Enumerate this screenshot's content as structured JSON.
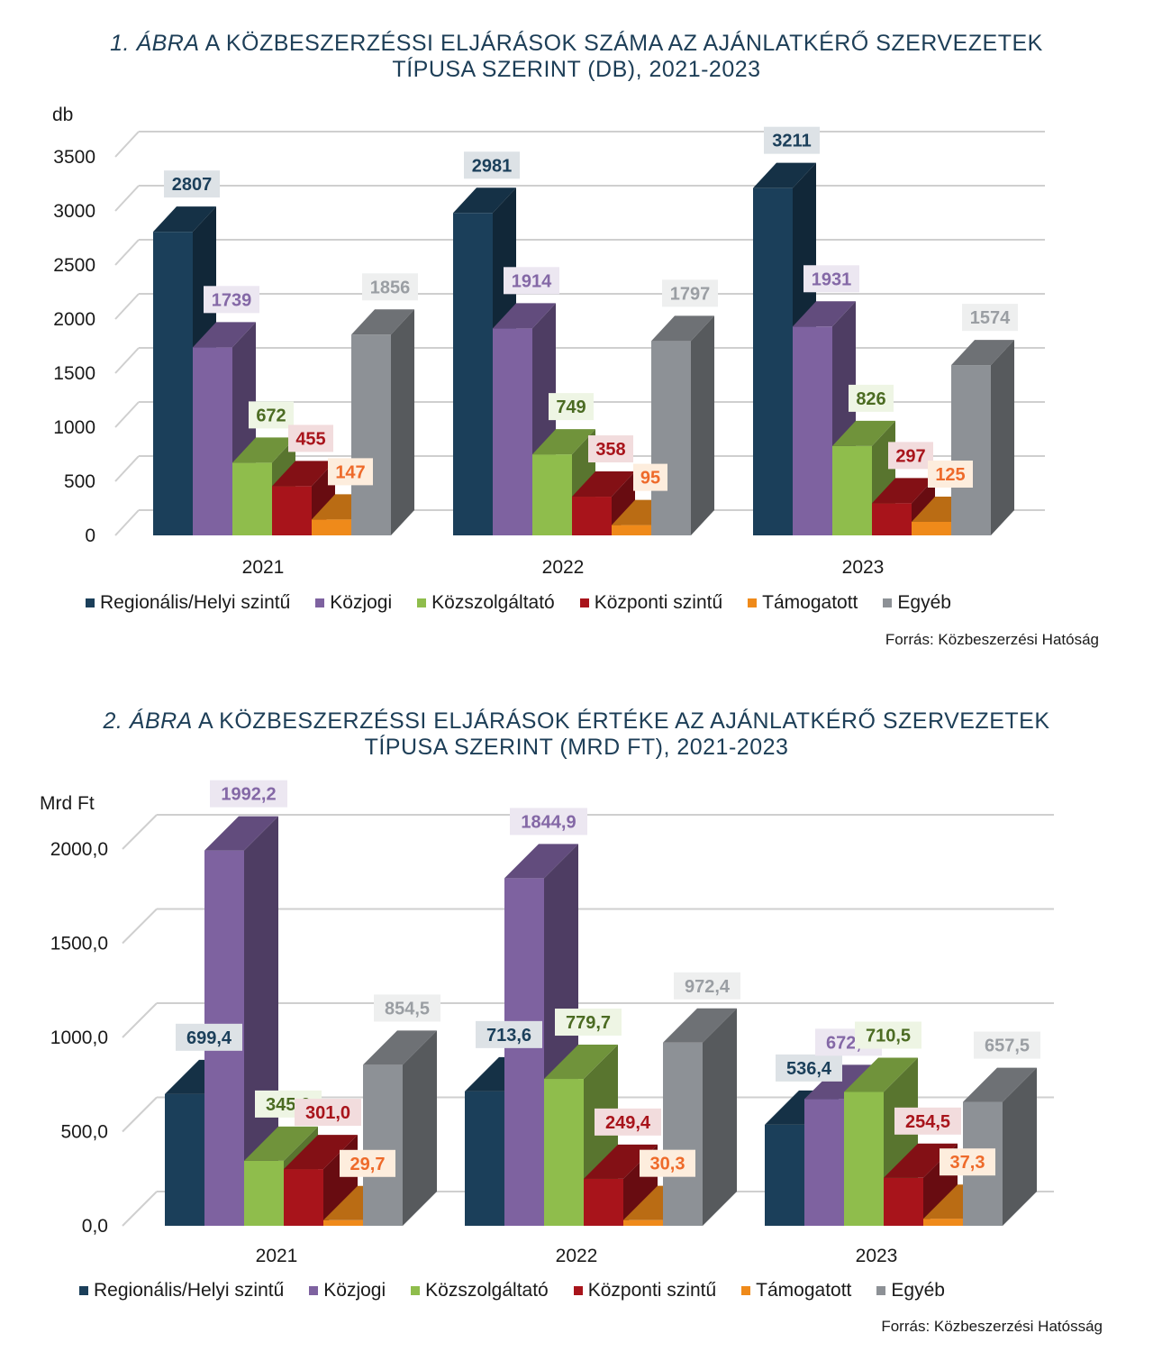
{
  "figures": [
    {
      "id": "chart1",
      "title_number": "1. ÁBRA",
      "title_line1": "A KÖZBESZERZÉSSI ELJÁRÁSOK SZÁMA AZ AJÁNLATKÉRŐ SZERVEZETEK",
      "title_line2": "TÍPUSA SZERINT (DB), 2021-2023",
      "source": "Forrás: Közbeszerzési Hatóság"
    },
    {
      "id": "chart2",
      "title_number": "2. ÁBRA",
      "title_line1": "A KÖZBESZERZÉSSI ELJÁRÁSOK ÉRTÉKE AZ AJÁNLATKÉRŐ SZERVEZETEK",
      "title_line2": "TÍPUSA SZERINT (MRD FT), 2021-2023",
      "source": "Forrás: Közbeszerzési Hatósság"
    }
  ],
  "colors": {
    "Regionális/Helyi szintű": "#1b3f5a",
    "Közjogi": "#7e62a0",
    "Közszolgáltató": "#8fbd4c",
    "Központi szintű": "#a8141b",
    "Támogatott": "#ef8a1a",
    "Egyéb": "#8d9196"
  },
  "chart_data": [
    {
      "type": "bar",
      "unit_label": "db",
      "categories": [
        "2021",
        "2022",
        "2023"
      ],
      "ylim": [
        0,
        3500
      ],
      "yticks": [
        "0",
        "500",
        "1000",
        "1500",
        "2000",
        "2500",
        "3000",
        "3500"
      ],
      "ytick_values": [
        0,
        500,
        1000,
        1500,
        2000,
        2500,
        3000,
        3500
      ],
      "grid": true,
      "legend_position": "bottom",
      "series": [
        {
          "name": "Regionális/Helyi szintű",
          "values": [
            2807,
            2981,
            3211
          ],
          "labels": [
            "2807",
            "2981",
            "3211"
          ]
        },
        {
          "name": "Közjogi",
          "values": [
            1739,
            1914,
            1931
          ],
          "labels": [
            "1739",
            "1914",
            "1931"
          ]
        },
        {
          "name": "Közszolgáltató",
          "values": [
            672,
            749,
            826
          ],
          "labels": [
            "672",
            "749",
            "826"
          ]
        },
        {
          "name": "Központi szintű",
          "values": [
            455,
            358,
            297
          ],
          "labels": [
            "455",
            "358",
            "297"
          ]
        },
        {
          "name": "Támogatott",
          "values": [
            147,
            95,
            125
          ],
          "labels": [
            "147",
            "95",
            "125"
          ]
        },
        {
          "name": "Egyéb",
          "values": [
            1856,
            1797,
            1574
          ],
          "labels": [
            "1856",
            "1797",
            "1574"
          ]
        }
      ]
    },
    {
      "type": "bar",
      "unit_label": "Mrd Ft",
      "categories": [
        "2021",
        "2022",
        "2023"
      ],
      "ylim": [
        0,
        2000
      ],
      "yticks": [
        "0,0",
        "500,0",
        "1000,0",
        "1500,0",
        "2000,0"
      ],
      "ytick_values": [
        0,
        500,
        1000,
        1500,
        2000
      ],
      "grid": true,
      "legend_position": "bottom",
      "series": [
        {
          "name": "Regionális/Helyi szintű",
          "values": [
            699.4,
            713.6,
            536.4
          ],
          "labels": [
            "699,4",
            "713,6",
            "536,4"
          ]
        },
        {
          "name": "Közjogi",
          "values": [
            1992.2,
            1844.9,
            672.9
          ],
          "labels": [
            "1992,2",
            "1844,9",
            "672,9"
          ]
        },
        {
          "name": "Közszolgáltató",
          "values": [
            345.0,
            779.7,
            710.5
          ],
          "labels": [
            "345,0",
            "779,7",
            "710,5"
          ]
        },
        {
          "name": "Központi szintű",
          "values": [
            301.0,
            249.4,
            254.5
          ],
          "labels": [
            "301,0",
            "249,4",
            "254,5"
          ]
        },
        {
          "name": "Támogatott",
          "values": [
            29.7,
            30.3,
            37.3
          ],
          "labels": [
            "29,7",
            "30,3",
            "37,3"
          ]
        },
        {
          "name": "Egyéb",
          "values": [
            854.5,
            972.4,
            657.5
          ],
          "labels": [
            "854,5",
            "972,4",
            "657,5"
          ]
        }
      ]
    }
  ]
}
